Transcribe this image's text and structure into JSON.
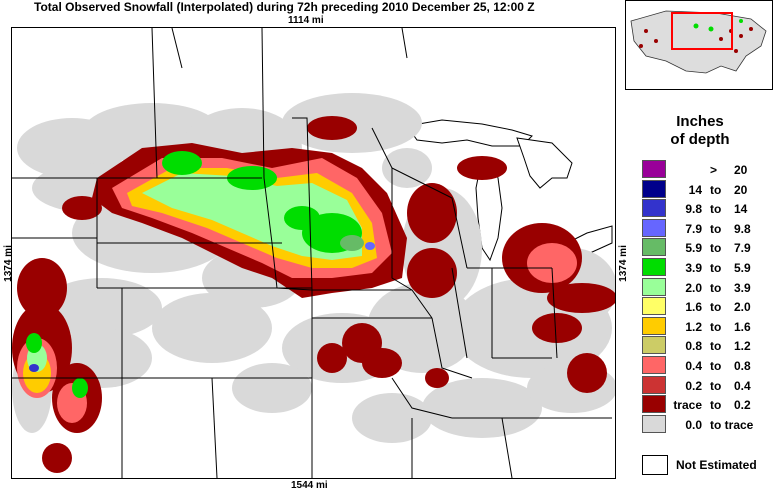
{
  "title": "Total Observed Snowfall (Interpolated) during 72h preceding 2010 December 25, 12:00 Z",
  "scale": {
    "top": "1114 mi",
    "bottom": "1544 mi",
    "left": "1374 mi",
    "right": "1374 mi"
  },
  "legend": {
    "title_line1": "Inches",
    "title_line2": "of depth",
    "rows": [
      {
        "lo": "",
        "to": ">",
        "hi": "20",
        "color": "#990099"
      },
      {
        "lo": "14",
        "to": "to",
        "hi": "20",
        "color": "#00008b"
      },
      {
        "lo": "9.8",
        "to": "to",
        "hi": "14",
        "color": "#3333cc"
      },
      {
        "lo": "7.9",
        "to": "to",
        "hi": "9.8",
        "color": "#6666ff"
      },
      {
        "lo": "5.9",
        "to": "to",
        "hi": "7.9",
        "color": "#66bb66"
      },
      {
        "lo": "3.9",
        "to": "to",
        "hi": "5.9",
        "color": "#00dd00"
      },
      {
        "lo": "2.0",
        "to": "to",
        "hi": "3.9",
        "color": "#99ff99"
      },
      {
        "lo": "1.6",
        "to": "to",
        "hi": "2.0",
        "color": "#ffff66"
      },
      {
        "lo": "1.2",
        "to": "to",
        "hi": "1.6",
        "color": "#ffcc00"
      },
      {
        "lo": "0.8",
        "to": "to",
        "hi": "1.2",
        "color": "#cccc66"
      },
      {
        "lo": "0.4",
        "to": "to",
        "hi": "0.8",
        "color": "#ff6666"
      },
      {
        "lo": "0.2",
        "to": "to",
        "hi": "0.4",
        "color": "#cc3333"
      },
      {
        "lo": "trace",
        "to": "to",
        "hi": "0.2",
        "color": "#990000"
      },
      {
        "lo": "0.0",
        "to": "to trace",
        "hi": "",
        "color": "#d9d9d9"
      }
    ],
    "not_estimated": "Not Estimated"
  }
}
